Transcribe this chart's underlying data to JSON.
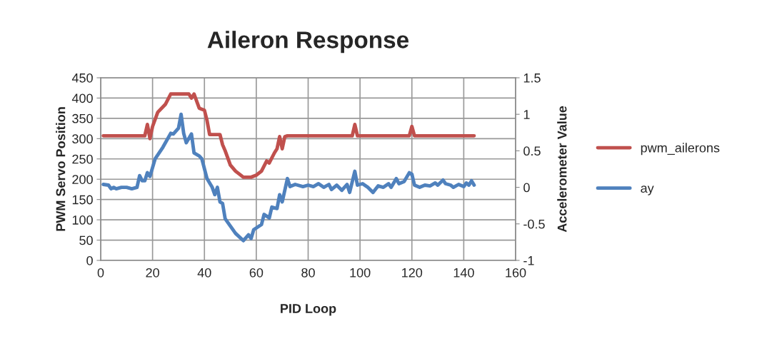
{
  "chart_data": {
    "type": "line",
    "title": "Aileron Response",
    "xlabel": "PID Loop",
    "ylabel": "PWM Servo Position",
    "y2label": "Accelerometer Value",
    "xlim": [
      0,
      160
    ],
    "xticks": [
      0,
      20,
      40,
      60,
      80,
      100,
      120,
      140,
      160
    ],
    "ylim": [
      0,
      450
    ],
    "yticks": [
      0,
      50,
      100,
      150,
      200,
      250,
      300,
      350,
      400,
      450
    ],
    "y2lim": [
      -1,
      1.5
    ],
    "y2ticks": [
      -1,
      -0.5,
      0,
      0.5,
      1,
      1.5
    ],
    "grid": true,
    "legend": "right",
    "marker": "none",
    "line_style": "solid",
    "series": [
      {
        "name": "pwm_ailerons",
        "color": "#c0504d",
        "x": [
          1,
          17,
          18,
          19,
          20,
          22,
          25,
          27,
          34,
          35,
          36,
          38,
          40,
          41,
          42,
          46,
          47,
          48,
          50,
          52,
          55,
          58,
          60,
          62,
          64,
          65,
          67,
          68,
          69,
          70,
          71,
          72,
          97,
          98,
          99,
          119,
          120,
          121,
          144
        ],
        "values": [
          307,
          307,
          335,
          300,
          330,
          365,
          385,
          410,
          410,
          400,
          410,
          375,
          370,
          345,
          310,
          310,
          285,
          270,
          235,
          220,
          205,
          205,
          210,
          220,
          245,
          240,
          265,
          275,
          305,
          275,
          305,
          307,
          307,
          335,
          307,
          307,
          330,
          307,
          307
        ]
      },
      {
        "name": "ay",
        "color": "#4f81bd",
        "axis": "y2",
        "x": [
          1,
          3,
          4,
          5,
          6,
          8,
          10,
          12,
          14,
          15,
          16,
          17,
          18,
          19,
          21,
          24,
          27,
          28,
          30,
          31,
          32,
          33,
          35,
          36,
          38,
          39,
          41,
          43,
          44,
          45,
          46,
          47,
          48,
          50,
          52,
          55,
          57,
          58,
          59,
          62,
          63,
          65,
          66,
          68,
          69,
          70,
          72,
          73,
          75,
          78,
          80,
          82,
          84,
          86,
          88,
          89,
          91,
          93,
          95,
          96,
          98,
          99,
          101,
          103,
          105,
          107,
          109,
          111,
          112,
          114,
          115,
          117,
          119,
          120,
          121,
          123,
          125,
          127,
          129,
          130,
          132,
          133,
          135,
          136,
          138,
          140,
          141,
          142,
          143,
          144
        ],
        "values": [
          0.04,
          0.03,
          -0.02,
          0.0,
          -0.02,
          0.0,
          0.0,
          -0.02,
          0.0,
          0.16,
          0.09,
          0.09,
          0.2,
          0.15,
          0.39,
          0.55,
          0.74,
          0.73,
          0.81,
          1.0,
          0.74,
          0.61,
          0.73,
          0.47,
          0.43,
          0.39,
          0.12,
          0.0,
          -0.1,
          0.0,
          -0.2,
          -0.22,
          -0.43,
          -0.53,
          -0.63,
          -0.73,
          -0.65,
          -0.7,
          -0.58,
          -0.51,
          -0.37,
          -0.42,
          -0.27,
          -0.29,
          -0.1,
          -0.2,
          0.12,
          0.01,
          0.04,
          0.01,
          0.03,
          0.01,
          0.05,
          0.0,
          0.04,
          -0.03,
          0.03,
          -0.04,
          0.04,
          -0.07,
          0.22,
          0.03,
          0.05,
          0.0,
          -0.07,
          0.02,
          0.0,
          0.05,
          0.0,
          0.12,
          0.05,
          0.08,
          0.2,
          0.18,
          0.03,
          0.0,
          0.03,
          0.02,
          0.06,
          0.03,
          0.1,
          0.05,
          0.03,
          0.0,
          0.04,
          0.01,
          0.06,
          0.03,
          0.09,
          0.03
        ]
      }
    ]
  }
}
